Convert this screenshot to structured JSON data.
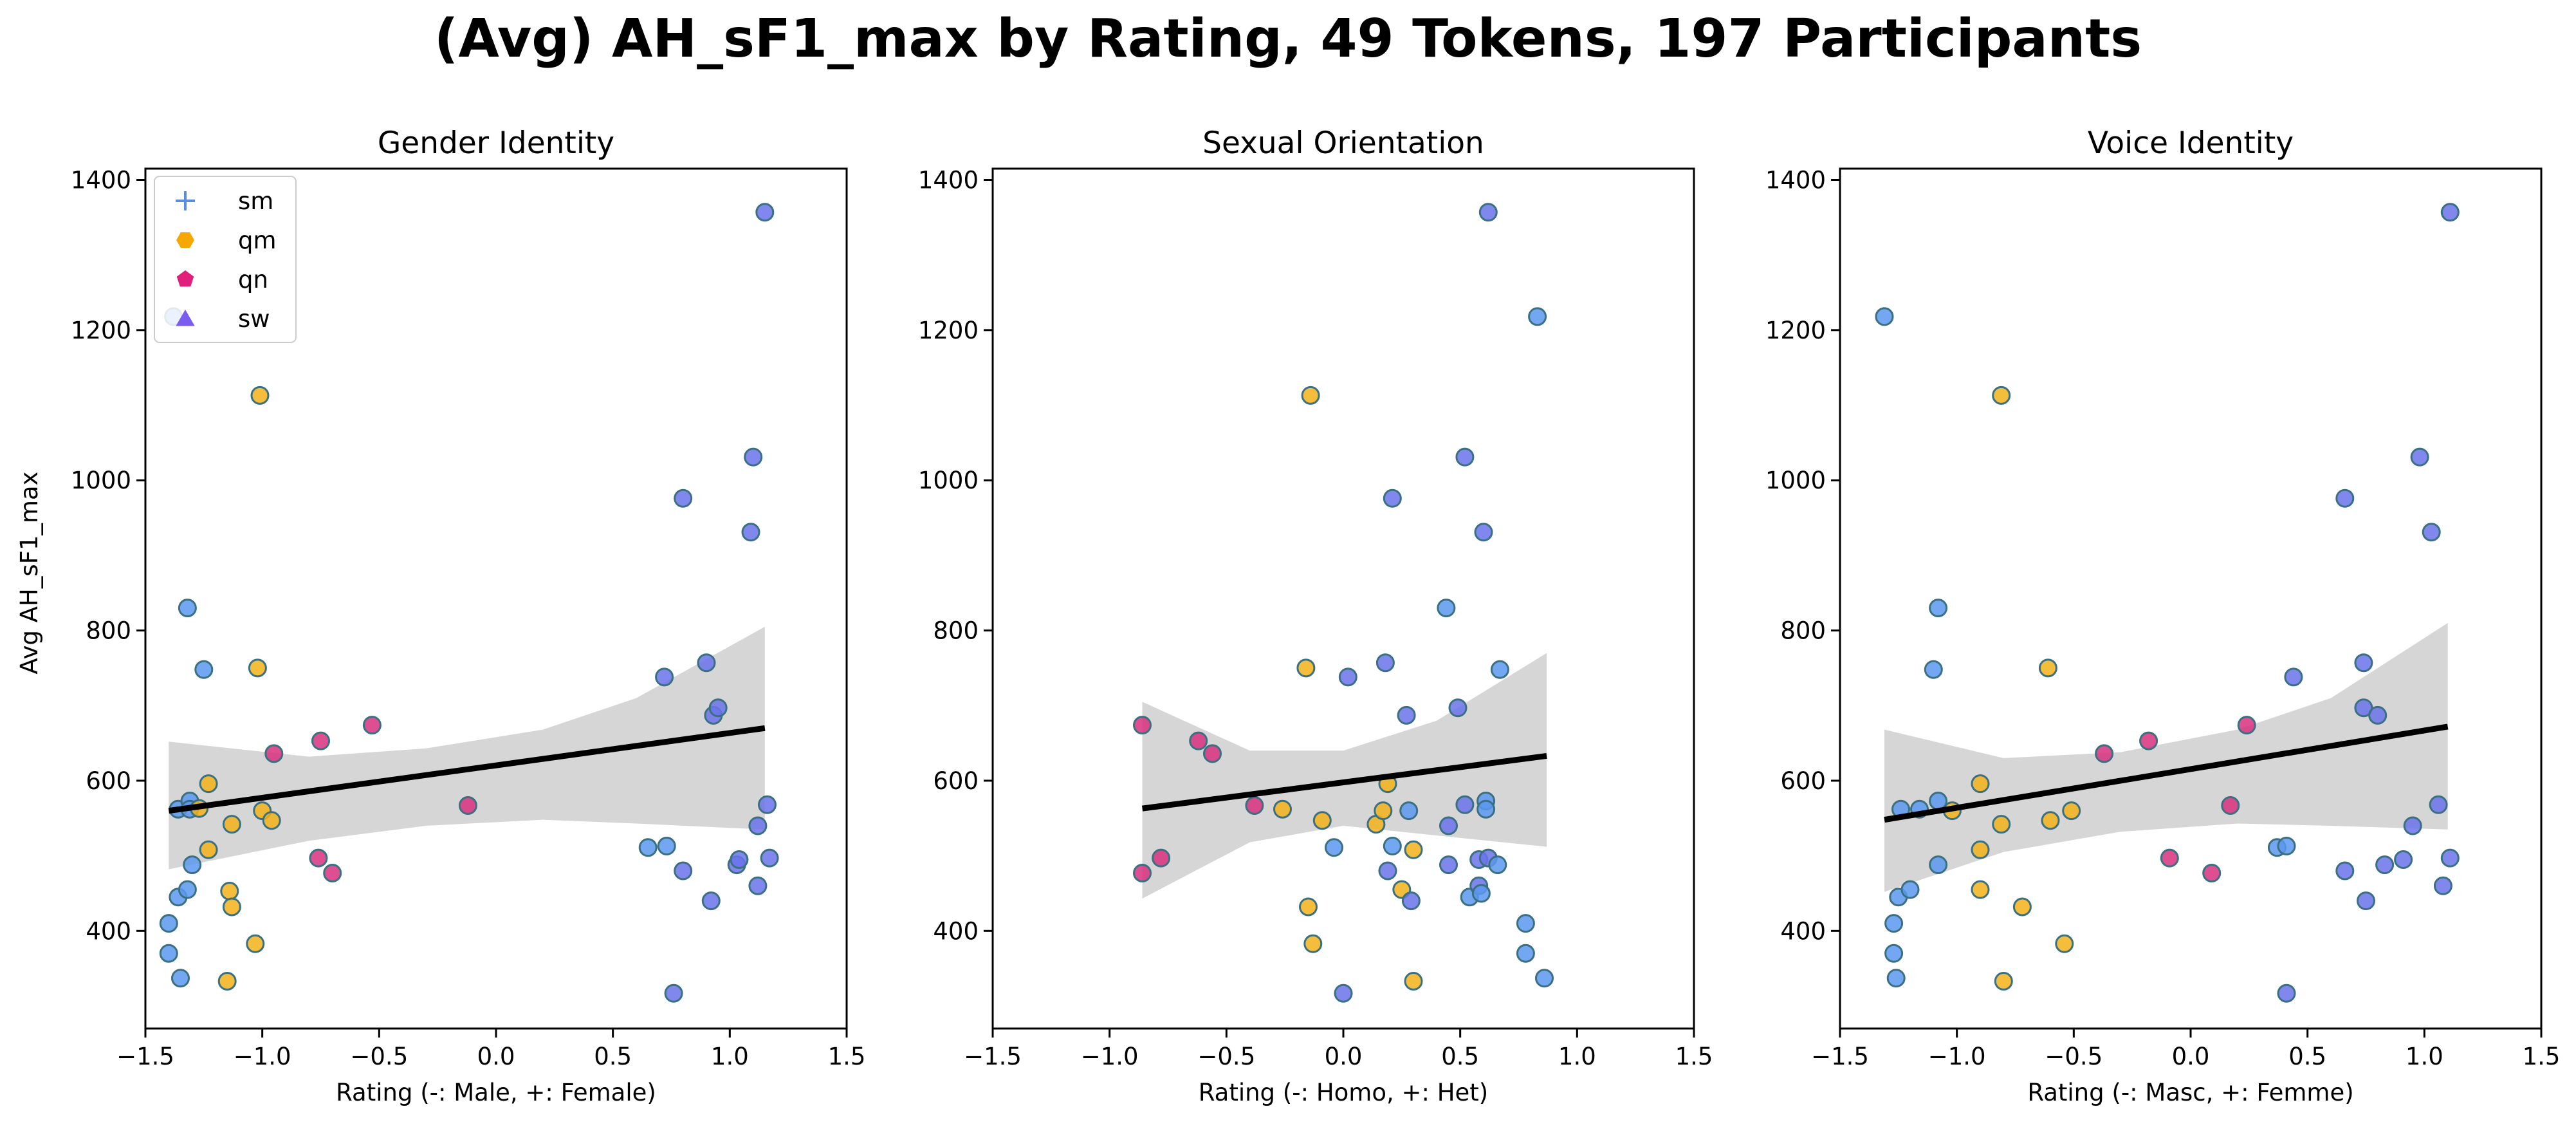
{
  "figure": {
    "title": "(Avg) AH_sF1_max by Rating, 49 Tokens, 197 Participants",
    "ylabel": "Avg AH_sF1_max"
  },
  "legend": {
    "placement": "upper-left",
    "entries": [
      {
        "key": "sm",
        "label": "sm",
        "color": "#5a8de0",
        "marker": "plus"
      },
      {
        "key": "qm",
        "label": "qm",
        "color": "#f7a800",
        "marker": "hexagon"
      },
      {
        "key": "qn",
        "label": "qn",
        "color": "#e0207a",
        "marker": "pentagon"
      },
      {
        "key": "sw",
        "label": "sw",
        "color": "#7a5cf0",
        "marker": "triangle"
      }
    ]
  },
  "colors": {
    "sm": "#5a98f0",
    "sw": "#6b73ea",
    "qm": "#f2b21a",
    "qn": "#d8307e",
    "marker_edge": "#3a7080",
    "regression_line": "#000000",
    "ci_band": "#d6d6d6"
  },
  "chart_data": [
    {
      "type": "scatter",
      "title": "Gender Identity",
      "xlabel": "Rating (-: Male, +: Female)",
      "ylabel": "Avg AH_sF1_max",
      "xlim": [
        -1.5,
        1.5
      ],
      "ylim": [
        270,
        1415
      ],
      "xticks": [
        -1.5,
        -1.0,
        -0.5,
        0.0,
        0.5,
        1.0,
        1.5
      ],
      "xtick_labels": [
        "−1.5",
        "−1.0",
        "−0.5",
        "0.0",
        "0.5",
        "1.0",
        "1.5"
      ],
      "yticks": [
        400,
        600,
        800,
        1000,
        1200,
        1400
      ],
      "ytick_labels": [
        "400",
        "600",
        "800",
        "1000",
        "1200",
        "1400"
      ],
      "grid": false,
      "legend": true,
      "regression": {
        "x": [
          -1.4,
          1.15
        ],
        "y": [
          560,
          670
        ]
      },
      "ci_band": {
        "x": [
          -1.4,
          -0.8,
          -0.3,
          0.2,
          0.6,
          1.15
        ],
        "lower": [
          482,
          520,
          540,
          548,
          543,
          535
        ],
        "upper": [
          652,
          632,
          643,
          668,
          710,
          805
        ]
      },
      "points": [
        {
          "x": -1.38,
          "y": 1218,
          "group": "sm"
        },
        {
          "x": -1.4,
          "y": 410,
          "group": "sm"
        },
        {
          "x": -1.4,
          "y": 370,
          "group": "sm"
        },
        {
          "x": -1.36,
          "y": 562,
          "group": "sm"
        },
        {
          "x": -1.36,
          "y": 445,
          "group": "sm"
        },
        {
          "x": -1.35,
          "y": 337,
          "group": "sm"
        },
        {
          "x": -1.32,
          "y": 830,
          "group": "sm"
        },
        {
          "x": -1.31,
          "y": 573,
          "group": "sm"
        },
        {
          "x": -1.31,
          "y": 562,
          "group": "sm"
        },
        {
          "x": -1.3,
          "y": 488,
          "group": "sm"
        },
        {
          "x": -1.32,
          "y": 455,
          "group": "sm"
        },
        {
          "x": -1.27,
          "y": 563,
          "group": "qm"
        },
        {
          "x": -1.25,
          "y": 748,
          "group": "sm"
        },
        {
          "x": -1.23,
          "y": 596,
          "group": "qm"
        },
        {
          "x": -1.23,
          "y": 508,
          "group": "qm"
        },
        {
          "x": -1.13,
          "y": 542,
          "group": "qm"
        },
        {
          "x": -1.14,
          "y": 453,
          "group": "qm"
        },
        {
          "x": -1.13,
          "y": 432,
          "group": "qm"
        },
        {
          "x": -1.15,
          "y": 333,
          "group": "qm"
        },
        {
          "x": -1.01,
          "y": 1113,
          "group": "qm"
        },
        {
          "x": -1.02,
          "y": 750,
          "group": "qm"
        },
        {
          "x": -1.0,
          "y": 560,
          "group": "qm"
        },
        {
          "x": -0.96,
          "y": 547,
          "group": "qm"
        },
        {
          "x": -1.03,
          "y": 383,
          "group": "qm"
        },
        {
          "x": -0.95,
          "y": 636,
          "group": "qn"
        },
        {
          "x": -0.75,
          "y": 653,
          "group": "qn"
        },
        {
          "x": -0.76,
          "y": 497,
          "group": "qn"
        },
        {
          "x": -0.7,
          "y": 477,
          "group": "qn"
        },
        {
          "x": -0.53,
          "y": 674,
          "group": "qn"
        },
        {
          "x": -0.12,
          "y": 567,
          "group": "qn"
        },
        {
          "x": 0.65,
          "y": 511,
          "group": "sm"
        },
        {
          "x": 0.72,
          "y": 738,
          "group": "sw"
        },
        {
          "x": 0.73,
          "y": 513,
          "group": "sm"
        },
        {
          "x": 0.76,
          "y": 317,
          "group": "sw"
        },
        {
          "x": 0.8,
          "y": 976,
          "group": "sw"
        },
        {
          "x": 0.8,
          "y": 480,
          "group": "sw"
        },
        {
          "x": 0.9,
          "y": 757,
          "group": "sw"
        },
        {
          "x": 0.93,
          "y": 687,
          "group": "sw"
        },
        {
          "x": 0.95,
          "y": 697,
          "group": "sw"
        },
        {
          "x": 0.92,
          "y": 440,
          "group": "sw"
        },
        {
          "x": 1.03,
          "y": 488,
          "group": "sw"
        },
        {
          "x": 1.04,
          "y": 495,
          "group": "sw"
        },
        {
          "x": 1.1,
          "y": 1031,
          "group": "sw"
        },
        {
          "x": 1.09,
          "y": 931,
          "group": "sw"
        },
        {
          "x": 1.12,
          "y": 540,
          "group": "sw"
        },
        {
          "x": 1.12,
          "y": 460,
          "group": "sw"
        },
        {
          "x": 1.15,
          "y": 1357,
          "group": "sw"
        },
        {
          "x": 1.16,
          "y": 568,
          "group": "sw"
        },
        {
          "x": 1.17,
          "y": 497,
          "group": "sw"
        }
      ]
    },
    {
      "type": "scatter",
      "title": "Sexual Orientation",
      "xlabel": "Rating (-: Homo, +: Het)",
      "ylabel": "",
      "xlim": [
        -1.5,
        1.5
      ],
      "ylim": [
        270,
        1415
      ],
      "xticks": [
        -1.5,
        -1.0,
        -0.5,
        0.0,
        0.5,
        1.0,
        1.5
      ],
      "xtick_labels": [
        "−1.5",
        "−1.0",
        "−0.5",
        "0.0",
        "0.5",
        "1.0",
        "1.5"
      ],
      "yticks": [
        400,
        600,
        800,
        1000,
        1200,
        1400
      ],
      "ytick_labels": [
        "400",
        "600",
        "800",
        "1000",
        "1200",
        "1400"
      ],
      "grid": false,
      "legend": false,
      "regression": {
        "x": [
          -0.86,
          0.87
        ],
        "y": [
          563,
          633
        ]
      },
      "ci_band": {
        "x": [
          -0.86,
          -0.4,
          0.0,
          0.4,
          0.87
        ],
        "lower": [
          443,
          518,
          540,
          527,
          512
        ],
        "upper": [
          705,
          640,
          640,
          680,
          770
        ]
      },
      "points": [
        {
          "x": -0.86,
          "y": 674,
          "group": "qn"
        },
        {
          "x": -0.86,
          "y": 477,
          "group": "qn"
        },
        {
          "x": -0.78,
          "y": 497,
          "group": "qn"
        },
        {
          "x": -0.62,
          "y": 653,
          "group": "qn"
        },
        {
          "x": -0.56,
          "y": 636,
          "group": "qn"
        },
        {
          "x": -0.38,
          "y": 567,
          "group": "qn"
        },
        {
          "x": -0.26,
          "y": 562,
          "group": "qm"
        },
        {
          "x": -0.16,
          "y": 750,
          "group": "qm"
        },
        {
          "x": -0.14,
          "y": 1113,
          "group": "qm"
        },
        {
          "x": -0.15,
          "y": 432,
          "group": "qm"
        },
        {
          "x": -0.13,
          "y": 383,
          "group": "qm"
        },
        {
          "x": -0.09,
          "y": 547,
          "group": "qm"
        },
        {
          "x": -0.04,
          "y": 511,
          "group": "sm"
        },
        {
          "x": 0.0,
          "y": 317,
          "group": "sw"
        },
        {
          "x": 0.02,
          "y": 738,
          "group": "sw"
        },
        {
          "x": 0.14,
          "y": 542,
          "group": "qm"
        },
        {
          "x": 0.17,
          "y": 560,
          "group": "qm"
        },
        {
          "x": 0.18,
          "y": 757,
          "group": "sw"
        },
        {
          "x": 0.19,
          "y": 596,
          "group": "qm"
        },
        {
          "x": 0.19,
          "y": 480,
          "group": "sw"
        },
        {
          "x": 0.21,
          "y": 976,
          "group": "sw"
        },
        {
          "x": 0.21,
          "y": 513,
          "group": "sm"
        },
        {
          "x": 0.25,
          "y": 455,
          "group": "qm"
        },
        {
          "x": 0.27,
          "y": 687,
          "group": "sw"
        },
        {
          "x": 0.28,
          "y": 560,
          "group": "sm"
        },
        {
          "x": 0.3,
          "y": 508,
          "group": "qm"
        },
        {
          "x": 0.29,
          "y": 440,
          "group": "sw"
        },
        {
          "x": 0.3,
          "y": 333,
          "group": "qm"
        },
        {
          "x": 0.44,
          "y": 830,
          "group": "sm"
        },
        {
          "x": 0.45,
          "y": 540,
          "group": "sw"
        },
        {
          "x": 0.45,
          "y": 488,
          "group": "sw"
        },
        {
          "x": 0.49,
          "y": 697,
          "group": "sw"
        },
        {
          "x": 0.52,
          "y": 1031,
          "group": "sw"
        },
        {
          "x": 0.52,
          "y": 568,
          "group": "sw"
        },
        {
          "x": 0.54,
          "y": 445,
          "group": "sm"
        },
        {
          "x": 0.58,
          "y": 495,
          "group": "sw"
        },
        {
          "x": 0.58,
          "y": 460,
          "group": "sw"
        },
        {
          "x": 0.59,
          "y": 450,
          "group": "sm"
        },
        {
          "x": 0.6,
          "y": 931,
          "group": "sw"
        },
        {
          "x": 0.61,
          "y": 573,
          "group": "sm"
        },
        {
          "x": 0.61,
          "y": 562,
          "group": "sm"
        },
        {
          "x": 0.62,
          "y": 497,
          "group": "sw"
        },
        {
          "x": 0.62,
          "y": 1357,
          "group": "sw"
        },
        {
          "x": 0.66,
          "y": 488,
          "group": "sm"
        },
        {
          "x": 0.67,
          "y": 748,
          "group": "sm"
        },
        {
          "x": 0.78,
          "y": 410,
          "group": "sm"
        },
        {
          "x": 0.78,
          "y": 370,
          "group": "sm"
        },
        {
          "x": 0.83,
          "y": 1218,
          "group": "sm"
        },
        {
          "x": 0.86,
          "y": 337,
          "group": "sm"
        }
      ]
    },
    {
      "type": "scatter",
      "title": "Voice Identity",
      "xlabel": "Rating (-: Masc, +: Femme)",
      "ylabel": "",
      "xlim": [
        -1.5,
        1.5
      ],
      "ylim": [
        270,
        1415
      ],
      "xticks": [
        -1.5,
        -1.0,
        -0.5,
        0.0,
        0.5,
        1.0,
        1.5
      ],
      "xtick_labels": [
        "−1.5",
        "−1.0",
        "−0.5",
        "0.0",
        "0.5",
        "1.0",
        "1.5"
      ],
      "yticks": [
        400,
        600,
        800,
        1000,
        1200,
        1400
      ],
      "ytick_labels": [
        "400",
        "600",
        "800",
        "1000",
        "1200",
        "1400"
      ],
      "grid": false,
      "legend": false,
      "regression": {
        "x": [
          -1.31,
          1.1
        ],
        "y": [
          548,
          672
        ]
      },
      "ci_band": {
        "x": [
          -1.31,
          -0.8,
          -0.3,
          0.2,
          0.6,
          1.1
        ],
        "lower": [
          452,
          505,
          532,
          543,
          540,
          535
        ],
        "upper": [
          668,
          630,
          638,
          668,
          710,
          810
        ]
      },
      "points": [
        {
          "x": -1.31,
          "y": 1218,
          "group": "sm"
        },
        {
          "x": -1.27,
          "y": 410,
          "group": "sm"
        },
        {
          "x": -1.27,
          "y": 370,
          "group": "sm"
        },
        {
          "x": -1.26,
          "y": 337,
          "group": "sm"
        },
        {
          "x": -1.25,
          "y": 445,
          "group": "sm"
        },
        {
          "x": -1.24,
          "y": 562,
          "group": "sm"
        },
        {
          "x": -1.2,
          "y": 455,
          "group": "sm"
        },
        {
          "x": -1.16,
          "y": 562,
          "group": "sm"
        },
        {
          "x": -1.1,
          "y": 748,
          "group": "sm"
        },
        {
          "x": -1.08,
          "y": 830,
          "group": "sm"
        },
        {
          "x": -1.08,
          "y": 573,
          "group": "sm"
        },
        {
          "x": -1.08,
          "y": 488,
          "group": "sm"
        },
        {
          "x": -1.02,
          "y": 560,
          "group": "qm"
        },
        {
          "x": -0.9,
          "y": 596,
          "group": "qm"
        },
        {
          "x": -0.9,
          "y": 508,
          "group": "qm"
        },
        {
          "x": -0.9,
          "y": 455,
          "group": "qm"
        },
        {
          "x": -0.81,
          "y": 1113,
          "group": "qm"
        },
        {
          "x": -0.81,
          "y": 542,
          "group": "qm"
        },
        {
          "x": -0.8,
          "y": 333,
          "group": "qm"
        },
        {
          "x": -0.72,
          "y": 432,
          "group": "qm"
        },
        {
          "x": -0.61,
          "y": 750,
          "group": "qm"
        },
        {
          "x": -0.6,
          "y": 547,
          "group": "qm"
        },
        {
          "x": -0.54,
          "y": 383,
          "group": "qm"
        },
        {
          "x": -0.51,
          "y": 560,
          "group": "qm"
        },
        {
          "x": -0.37,
          "y": 636,
          "group": "qn"
        },
        {
          "x": -0.18,
          "y": 653,
          "group": "qn"
        },
        {
          "x": -0.09,
          "y": 497,
          "group": "qn"
        },
        {
          "x": 0.09,
          "y": 477,
          "group": "qn"
        },
        {
          "x": 0.17,
          "y": 567,
          "group": "qn"
        },
        {
          "x": 0.24,
          "y": 674,
          "group": "qn"
        },
        {
          "x": 0.37,
          "y": 511,
          "group": "sm"
        },
        {
          "x": 0.41,
          "y": 513,
          "group": "sm"
        },
        {
          "x": 0.41,
          "y": 317,
          "group": "sw"
        },
        {
          "x": 0.44,
          "y": 738,
          "group": "sw"
        },
        {
          "x": 0.66,
          "y": 976,
          "group": "sw"
        },
        {
          "x": 0.66,
          "y": 480,
          "group": "sw"
        },
        {
          "x": 0.74,
          "y": 757,
          "group": "sw"
        },
        {
          "x": 0.74,
          "y": 697,
          "group": "sw"
        },
        {
          "x": 0.75,
          "y": 440,
          "group": "sw"
        },
        {
          "x": 0.8,
          "y": 687,
          "group": "sw"
        },
        {
          "x": 0.83,
          "y": 488,
          "group": "sw"
        },
        {
          "x": 0.91,
          "y": 495,
          "group": "sw"
        },
        {
          "x": 0.95,
          "y": 540,
          "group": "sw"
        },
        {
          "x": 0.98,
          "y": 1031,
          "group": "sw"
        },
        {
          "x": 1.03,
          "y": 931,
          "group": "sw"
        },
        {
          "x": 1.06,
          "y": 568,
          "group": "sw"
        },
        {
          "x": 1.08,
          "y": 460,
          "group": "sw"
        },
        {
          "x": 1.11,
          "y": 1357,
          "group": "sw"
        },
        {
          "x": 1.11,
          "y": 497,
          "group": "sw"
        }
      ]
    }
  ]
}
